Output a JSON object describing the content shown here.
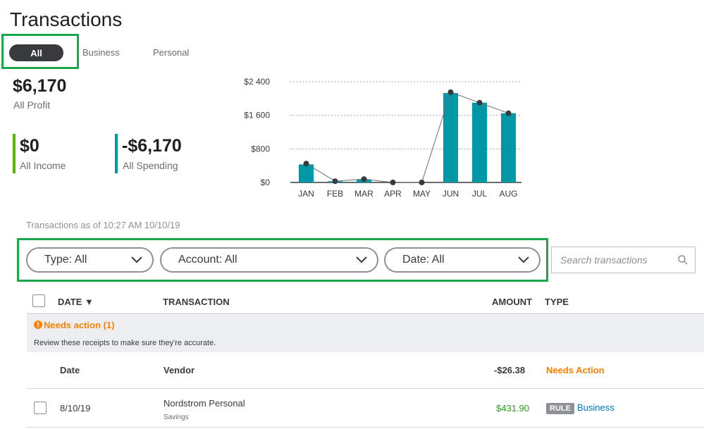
{
  "page": {
    "title": "Transactions"
  },
  "filters": {
    "tabs": [
      "All",
      "Business",
      "Personal"
    ]
  },
  "summary": {
    "profit_value": "$6,170",
    "profit_label": "All Profit",
    "income_value": "$0",
    "income_label": "All Income",
    "spending_value": "-$6,170",
    "spending_label": "All Spending"
  },
  "chart_data": {
    "type": "bar",
    "categories": [
      "JAN",
      "FEB",
      "MAR",
      "APR",
      "MAY",
      "JUN",
      "JUL",
      "AUG"
    ],
    "values": [
      430,
      30,
      70,
      0,
      0,
      2130,
      1900,
      1650
    ],
    "line_values": [
      450,
      30,
      80,
      0,
      0,
      2150,
      1900,
      1650
    ],
    "ylim": [
      0,
      2400
    ],
    "yticks": [
      0,
      800,
      1600,
      2400
    ],
    "ytick_labels": [
      "$0",
      "$800",
      "$1 600",
      "$2 400"
    ],
    "bar_color": "#0097a7",
    "grid": true
  },
  "as_of": "Transactions as of 10:27 AM 10/10/19",
  "dropdowns": {
    "type": "Type: All",
    "account": "Account: All",
    "date": "Date: All"
  },
  "search": {
    "placeholder": "Search transactions"
  },
  "table": {
    "headers": {
      "date": "DATE ▼",
      "transaction": "TRANSACTION",
      "amount": "AMOUNT",
      "type": "TYPE"
    },
    "needs_action": {
      "title": "Needs action (1)",
      "text": "Review these receipts to make sure they're accurate."
    },
    "pending_row": {
      "date": "Date",
      "vendor": "Vendor",
      "amount": "-$26.38",
      "status": "Needs Action"
    },
    "rows": [
      {
        "date": "8/10/19",
        "name": "Nordstrom Personal",
        "account": "Savings",
        "amount": "$431.90",
        "badge": "RULE",
        "type": "Business"
      }
    ]
  },
  "colors": {
    "highlight": "#1aa94a",
    "income": "#53b700",
    "spending": "#0097a7",
    "warning": "#ff8000",
    "positive": "#2ca01c",
    "link": "#0077c5"
  }
}
